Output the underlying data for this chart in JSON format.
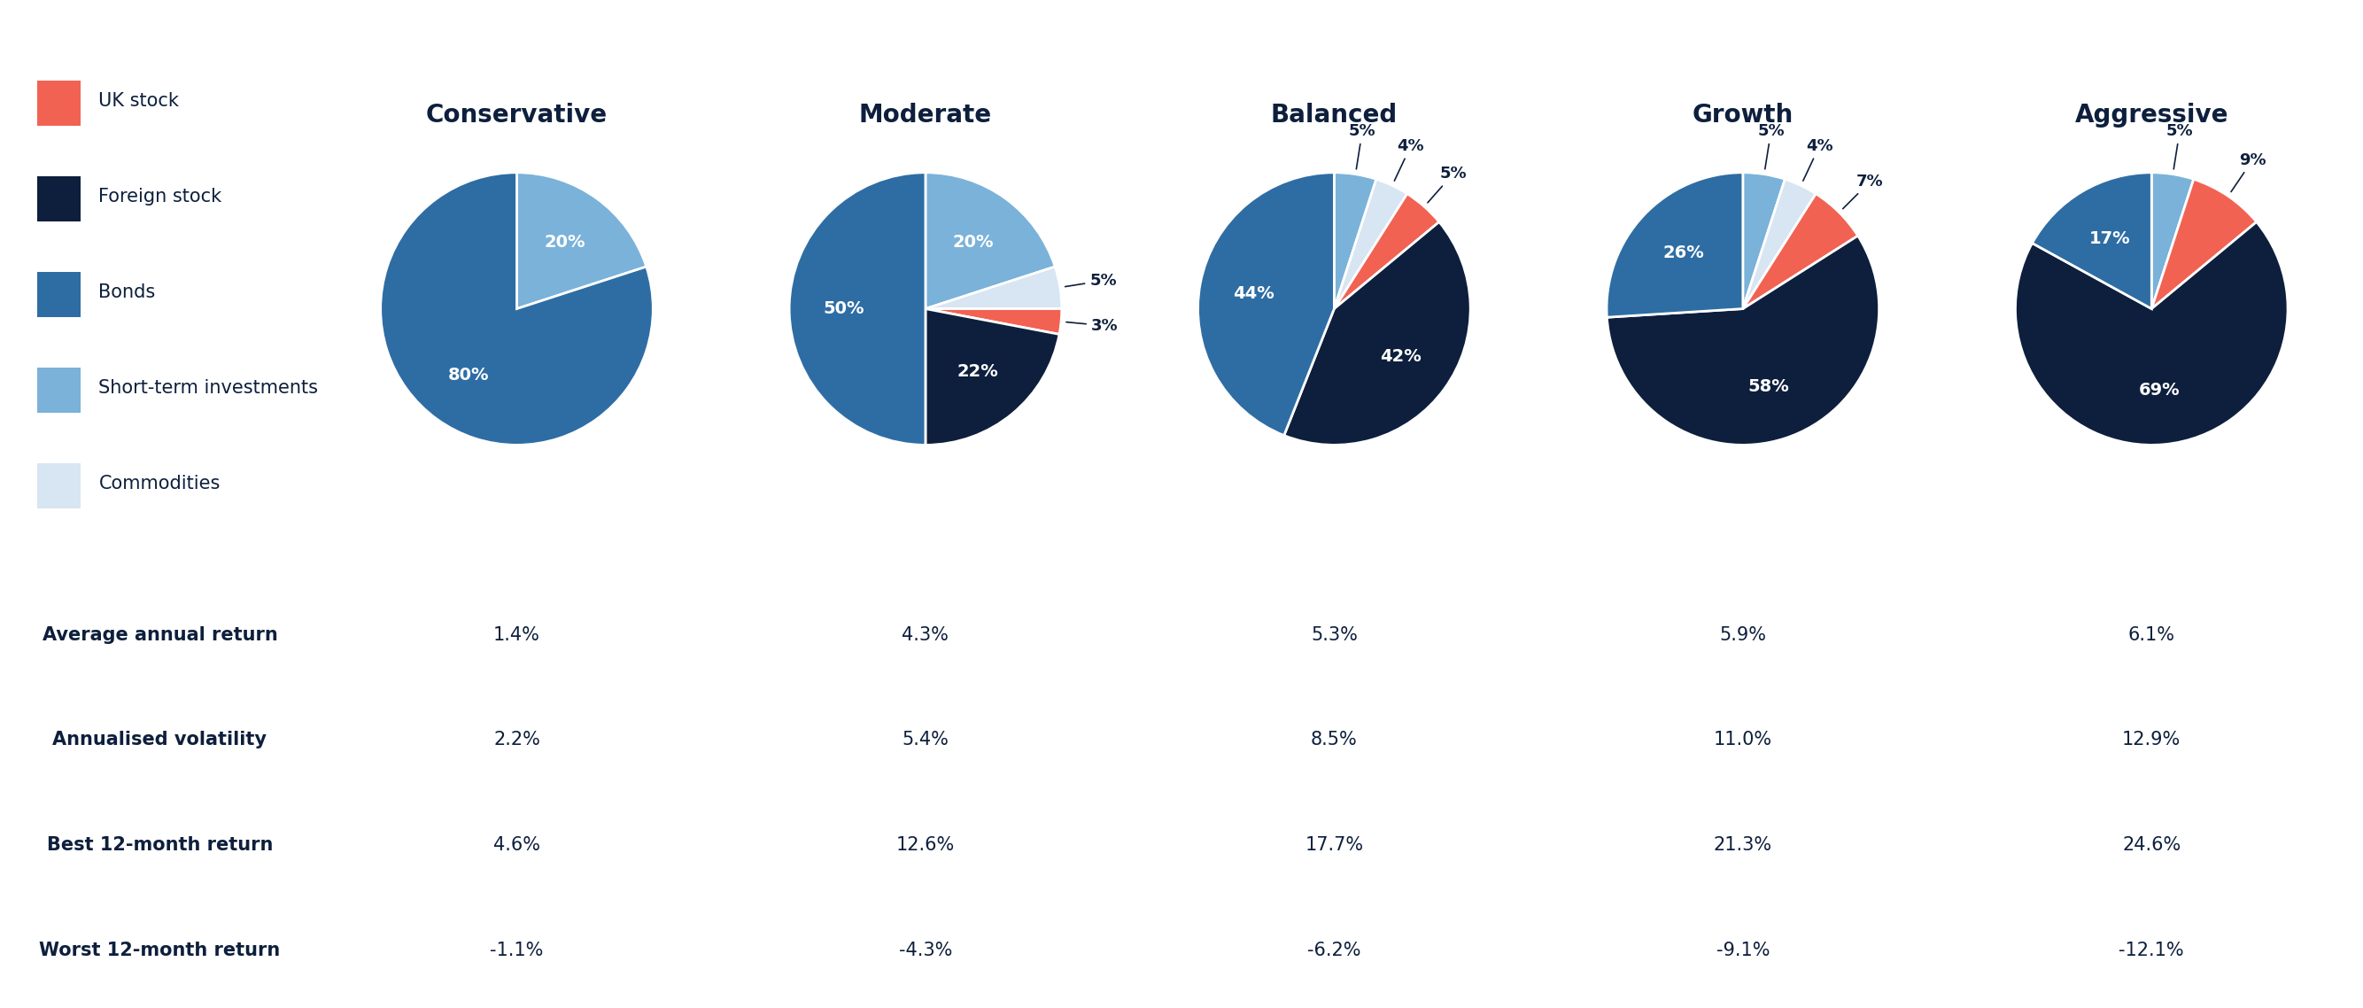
{
  "columns": [
    "Conservative",
    "Moderate",
    "Balanced",
    "Growth",
    "Aggressive"
  ],
  "legend_items": [
    {
      "label": "UK stock",
      "color": "#f26252"
    },
    {
      "label": "Foreign stock",
      "color": "#0d1f3c"
    },
    {
      "label": "Bonds",
      "color": "#2e6da4"
    },
    {
      "label": "Short-term investments",
      "color": "#7ab2d9"
    },
    {
      "label": "Commodities",
      "color": "#d8e5f2"
    }
  ],
  "pie_slices": {
    "Conservative": [
      0,
      0,
      80,
      20,
      0
    ],
    "Moderate": [
      3,
      22,
      50,
      20,
      5
    ],
    "Balanced": [
      5,
      42,
      44,
      5,
      4
    ],
    "Growth": [
      7,
      58,
      26,
      5,
      4
    ],
    "Aggressive": [
      9,
      69,
      17,
      5,
      0
    ]
  },
  "pie_labels": {
    "Conservative": [
      "",
      "",
      "80%",
      "20%",
      ""
    ],
    "Moderate": [
      "3%",
      "22%",
      "50%",
      "20%",
      "5%"
    ],
    "Balanced": [
      "5%",
      "42%",
      "44%",
      "5%",
      "4%"
    ],
    "Growth": [
      "7%",
      "58%",
      "26%",
      "5%",
      "4%"
    ],
    "Aggressive": [
      "9%",
      "69%",
      "17%",
      "5%",
      ""
    ]
  },
  "table_rows": [
    {
      "label": "Average annual return",
      "values": [
        "1.4%",
        "4.3%",
        "5.3%",
        "5.9%",
        "6.1%"
      ]
    },
    {
      "label": "Annualised volatility",
      "values": [
        "2.2%",
        "5.4%",
        "8.5%",
        "11.0%",
        "12.9%"
      ]
    },
    {
      "label": "Best 12-month return",
      "values": [
        "4.6%",
        "12.6%",
        "17.7%",
        "21.3%",
        "24.6%"
      ]
    },
    {
      "label": "Worst 12-month return",
      "values": [
        "-1.1%",
        "-4.3%",
        "-6.2%",
        "-9.1%",
        "-12.1%"
      ]
    }
  ],
  "colors": {
    "slice_uk": "#f26252",
    "slice_foreign": "#0d1f3c",
    "slice_bonds": "#2e6da4",
    "slice_short": "#7ab2d9",
    "slice_comm": "#d8e5f2",
    "background": "#ffffff",
    "table_odd": "#e8f0f8",
    "table_even": "#ffffff",
    "header": "#0d1f3c",
    "border": "#0d1f3c",
    "pie_text_white": "#ffffff",
    "table_text": "#0d1f3c"
  },
  "font_sizes": {
    "col_header": 20,
    "legend": 15,
    "pie_inside": 14,
    "pie_outside": 13,
    "row_label": 15,
    "cell_value": 15
  }
}
